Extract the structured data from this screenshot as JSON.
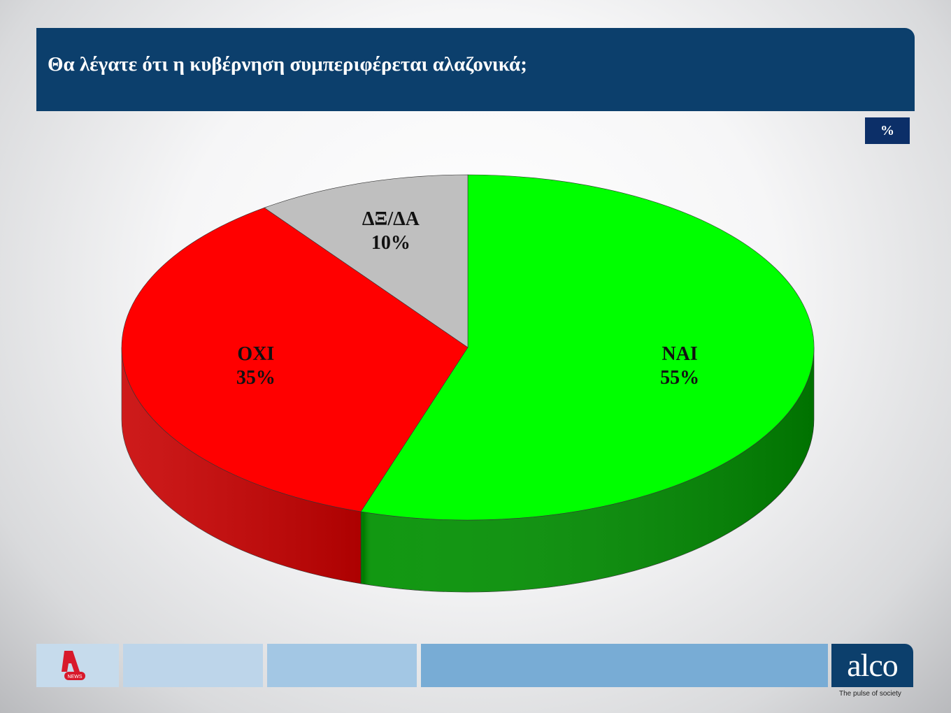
{
  "header": {
    "title": "Θα λέγατε ότι η κυβέρνηση συμπεριφέρεται αλαζονικά;"
  },
  "unit_badge": "%",
  "chart_data": {
    "type": "pie",
    "style": "3d",
    "start": "12 o'clock, clockwise",
    "slices": [
      {
        "label": "ΝΑΙ",
        "value": 55,
        "value_label": "55%",
        "color": "#00ff00",
        "side_color": "#009000"
      },
      {
        "label": "ΟΧΙ",
        "value": 35,
        "value_label": "35%",
        "color": "#ff0000",
        "side_color": "#c80000"
      },
      {
        "label": "ΔΞ/ΔΑ",
        "value": 10,
        "value_label": "10%",
        "color": "#bfbfbf",
        "side_color": "#999999"
      }
    ]
  },
  "footer": {
    "brand_left": "NEWS",
    "brand_right": "alco",
    "tagline": "The pulse of society"
  }
}
